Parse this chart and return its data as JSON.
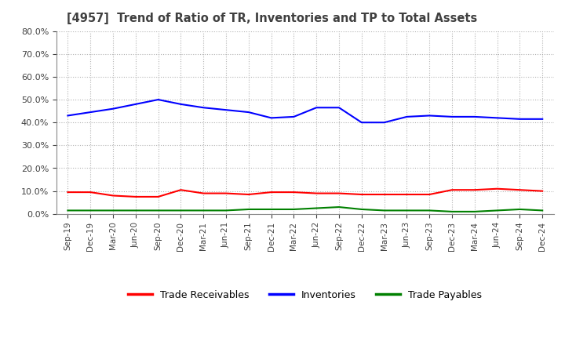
{
  "title": "[4957]  Trend of Ratio of TR, Inventories and TP to Total Assets",
  "x_labels": [
    "Sep-19",
    "Dec-19",
    "Mar-20",
    "Jun-20",
    "Sep-20",
    "Dec-20",
    "Mar-21",
    "Jun-21",
    "Sep-21",
    "Dec-21",
    "Mar-22",
    "Jun-22",
    "Sep-22",
    "Dec-22",
    "Mar-23",
    "Jun-23",
    "Sep-23",
    "Dec-23",
    "Mar-24",
    "Jun-24",
    "Sep-24",
    "Dec-24"
  ],
  "trade_receivables": [
    9.5,
    9.5,
    8.0,
    7.5,
    7.5,
    10.5,
    9.0,
    9.0,
    8.5,
    9.5,
    9.5,
    9.0,
    9.0,
    8.5,
    8.5,
    8.5,
    8.5,
    10.5,
    10.5,
    11.0,
    10.5,
    10.0
  ],
  "inventories": [
    43.0,
    44.5,
    46.0,
    48.0,
    50.0,
    48.0,
    46.5,
    45.5,
    44.5,
    42.0,
    42.5,
    46.5,
    46.5,
    40.0,
    40.0,
    42.5,
    43.0,
    42.5,
    42.5,
    42.0,
    41.5,
    41.5
  ],
  "trade_payables": [
    1.5,
    1.5,
    1.5,
    1.5,
    1.5,
    1.5,
    1.5,
    1.5,
    2.0,
    2.0,
    2.0,
    2.5,
    3.0,
    2.0,
    1.5,
    1.5,
    1.5,
    1.0,
    1.0,
    1.5,
    2.0,
    1.5
  ],
  "ylim": [
    0,
    80
  ],
  "yticks": [
    0,
    10,
    20,
    30,
    40,
    50,
    60,
    70,
    80
  ],
  "color_tr": "#FF0000",
  "color_inv": "#0000FF",
  "color_tp": "#008000",
  "line_width": 1.5,
  "plot_bg_color": "#FFFFFF",
  "fig_bg_color": "#FFFFFF",
  "grid_color": "#AAAAAA",
  "title_color": "#404040",
  "tick_color": "#404040",
  "legend_labels": [
    "Trade Receivables",
    "Inventories",
    "Trade Payables"
  ]
}
